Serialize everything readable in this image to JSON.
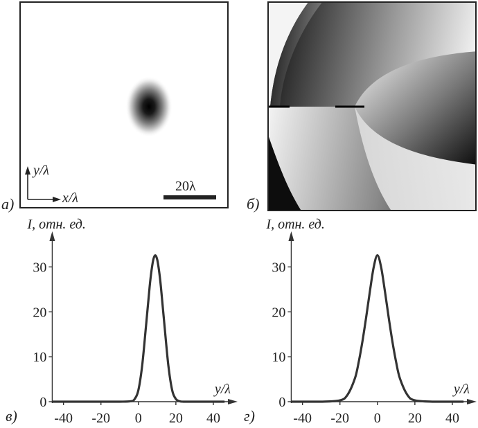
{
  "panels": {
    "a": {
      "label": "а)",
      "axis_y": "y/λ",
      "axis_x": "x/λ",
      "scale_bar": "20λ"
    },
    "b": {
      "label": "б)"
    },
    "c": {
      "label": "в)"
    },
    "d": {
      "label": "г)"
    }
  },
  "chart_data": [
    {
      "type": "line",
      "panel": "в)",
      "ylabel": "I, отн. ед.",
      "xlabel": "y/λ",
      "xlim": [
        -48,
        50
      ],
      "ylim": [
        0,
        37
      ],
      "x_ticks": [
        -40,
        -20,
        0,
        20,
        40
      ],
      "y_ticks": [
        0,
        10,
        20,
        30
      ],
      "series": [
        {
          "color": "#333333",
          "x": [
            -46,
            -30,
            -10,
            -4,
            -2,
            0,
            2,
            4,
            6,
            7,
            8,
            9,
            10,
            11,
            12,
            14,
            16,
            18,
            20,
            22,
            24,
            30,
            46
          ],
          "y": [
            0,
            0,
            0,
            0.1,
            0.6,
            2.6,
            8,
            16.6,
            25.6,
            29.2,
            31.7,
            32.6,
            31.7,
            29.2,
            25.6,
            16.6,
            8,
            2.6,
            0.6,
            0.1,
            0,
            0,
            0
          ]
        }
      ]
    },
    {
      "type": "line",
      "panel": "г)",
      "ylabel": "I, отн. ед.",
      "xlabel": "y/λ",
      "xlim": [
        -48,
        50
      ],
      "ylim": [
        0,
        37
      ],
      "x_ticks": [
        -40,
        -20,
        0,
        20,
        40
      ],
      "y_ticks": [
        0,
        10,
        20,
        30
      ],
      "series": [
        {
          "color": "#333333",
          "x": [
            -46,
            -30,
            -20,
            -16,
            -12,
            -10,
            -8,
            -6,
            -4,
            -2,
            0,
            2,
            4,
            6,
            8,
            10,
            12,
            16,
            20,
            30,
            46
          ],
          "y": [
            0,
            0,
            0.3,
            1.5,
            5.2,
            8.8,
            13.4,
            18.8,
            24.6,
            29.9,
            32.6,
            29.9,
            24.6,
            18.8,
            13.4,
            8.8,
            5.2,
            1.5,
            0.3,
            0,
            0
          ]
        }
      ]
    }
  ]
}
